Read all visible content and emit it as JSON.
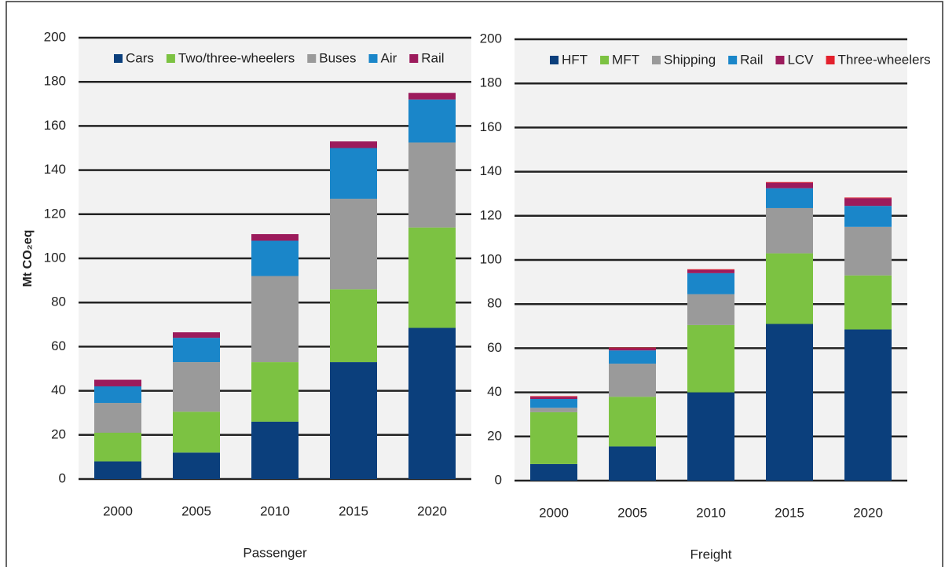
{
  "chart_data": [
    {
      "type": "stacked_bar",
      "ylabel": "Mt CO₂eq",
      "xlabel": "Passenger",
      "categories": [
        "2000",
        "2005",
        "2010",
        "2015",
        "2020"
      ],
      "ylim": [
        0,
        200
      ],
      "yticks": [
        0,
        20,
        40,
        60,
        80,
        100,
        120,
        140,
        160,
        180,
        200
      ],
      "grid": true,
      "series": [
        {
          "name": "Cars",
          "color": "#0b3f7c",
          "values": [
            8,
            12,
            26,
            53,
            68.5
          ]
        },
        {
          "name": "Two/three-wheelers",
          "color": "#7cc242",
          "values": [
            13,
            18.5,
            27,
            33,
            45.5
          ]
        },
        {
          "name": "Buses",
          "color": "#9a9a9a",
          "values": [
            13.5,
            22.5,
            39,
            41,
            38.5
          ]
        },
        {
          "name": "Air",
          "color": "#1a86c9",
          "values": [
            7.5,
            11,
            16,
            23,
            19.5
          ]
        },
        {
          "name": "Rail",
          "color": "#9c1b5c",
          "values": [
            3,
            2.5,
            3,
            3,
            3
          ]
        }
      ]
    },
    {
      "type": "stacked_bar",
      "xlabel": "Freight",
      "categories": [
        "2000",
        "2005",
        "2010",
        "2015",
        "2020"
      ],
      "ylim": [
        0,
        200
      ],
      "yticks": [
        0,
        20,
        40,
        60,
        80,
        100,
        120,
        140,
        160,
        180,
        200
      ],
      "grid": true,
      "series": [
        {
          "name": "HFT",
          "color": "#0b3f7c",
          "values": [
            7.5,
            15.5,
            40,
            71,
            68.5
          ]
        },
        {
          "name": "MFT",
          "color": "#7cc242",
          "values": [
            23.5,
            22.5,
            30.5,
            32,
            24.5
          ]
        },
        {
          "name": "Shipping",
          "color": "#9a9a9a",
          "values": [
            2,
            15,
            14,
            20.5,
            22
          ]
        },
        {
          "name": "Rail",
          "color": "#1a86c9",
          "values": [
            4,
            6,
            9.5,
            9,
            9.5
          ]
        },
        {
          "name": "LCV",
          "color": "#9c1b5c",
          "values": [
            1,
            1,
            1.5,
            2.5,
            3.5
          ]
        },
        {
          "name": "Three-wheelers",
          "color": "#e3202c",
          "values": [
            0.3,
            0.3,
            0.3,
            0.3,
            0.3
          ]
        }
      ]
    }
  ]
}
